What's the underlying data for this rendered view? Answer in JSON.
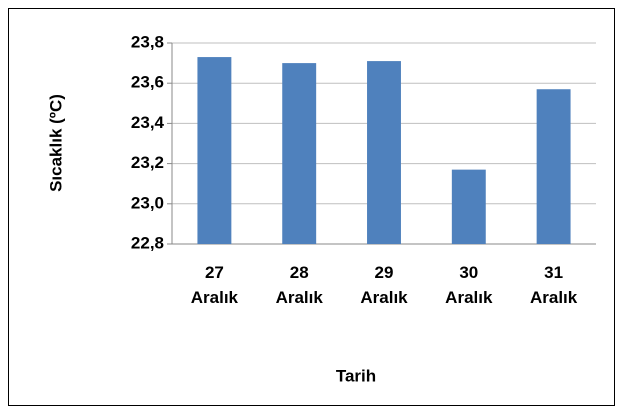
{
  "chart_data": {
    "type": "bar",
    "y_label": "Sıcaklık (ºC)",
    "x_label": "Tarih",
    "categories": [
      "27 Aralık",
      "28 Aralık",
      "29 Aralık",
      "30 Aralık",
      "31 Aralık"
    ],
    "values": [
      23.73,
      23.7,
      23.71,
      23.17,
      23.57
    ],
    "color": "#4f81bd",
    "ylim": [
      22.8,
      23.8
    ],
    "yticks": [
      {
        "value": 22.8,
        "label": "22,8"
      },
      {
        "value": 23.0,
        "label": "23,0"
      },
      {
        "value": 23.2,
        "label": "23,2"
      },
      {
        "value": 23.4,
        "label": "23,4"
      },
      {
        "value": 23.6,
        "label": "23,6"
      },
      {
        "value": 23.8,
        "label": "23,8"
      }
    ],
    "grid": true
  }
}
